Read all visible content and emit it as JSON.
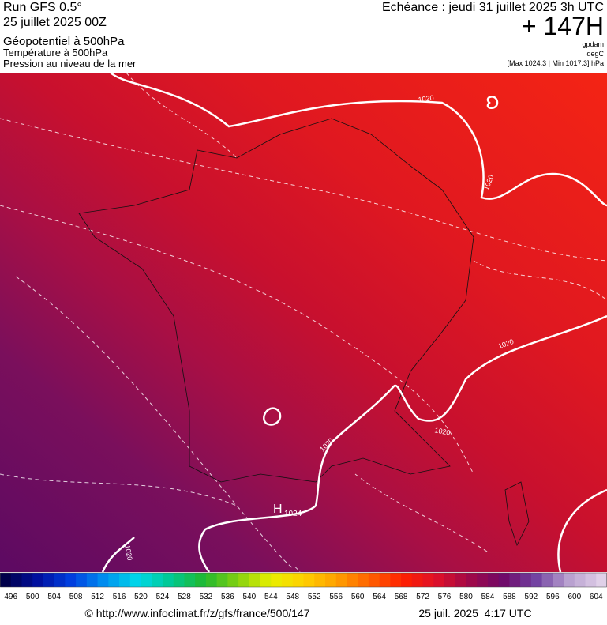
{
  "header": {
    "run": "Run GFS 0.5°",
    "date": "25 juillet 2025 00Z",
    "layers": [
      "Géopotentiel à 500hPa",
      "Température à 500hPa",
      "Pression au niveau de la mer"
    ],
    "echeance": "Echéance : jeudi 31 juillet 2025 3h UTC",
    "offset": "+ 147H",
    "units": [
      "gpdam",
      "degC"
    ],
    "range": "[Max 1024.3 | Min 1017.3] hPa"
  },
  "map": {
    "contour_labels": [
      "1020",
      "1020",
      "1020",
      "1020",
      "1020",
      "1020"
    ],
    "high": {
      "symbol": "H",
      "value": "1024"
    }
  },
  "colorbar": {
    "labels": [
      496,
      500,
      504,
      508,
      512,
      516,
      520,
      524,
      528,
      532,
      536,
      540,
      544,
      548,
      552,
      556,
      560,
      564,
      568,
      572,
      576,
      580,
      584,
      588,
      592,
      596,
      600,
      604
    ]
  },
  "footer": {
    "url": "© http://www.infoclimat.fr/z/gfs/france/500/147",
    "timestamp": "25 juil. 2025  4:17 UTC"
  }
}
